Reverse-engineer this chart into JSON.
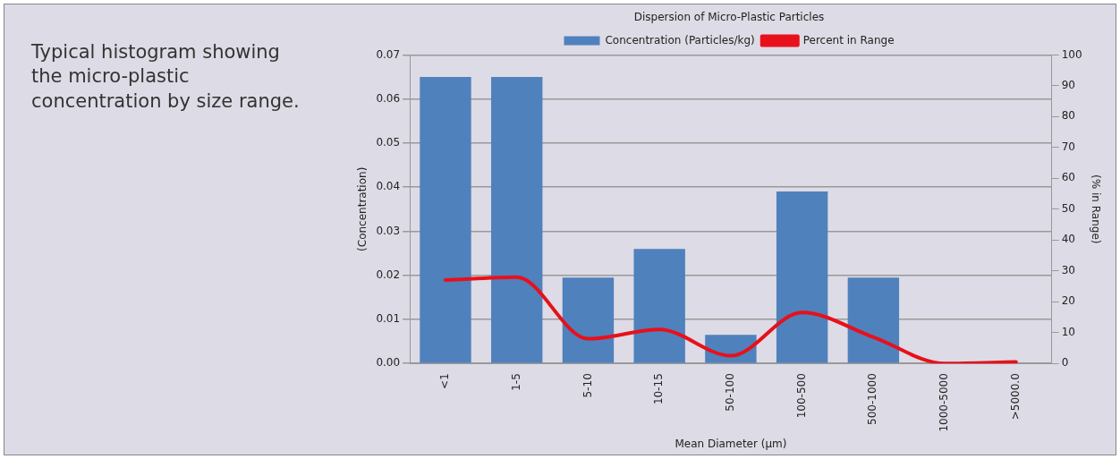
{
  "chart_data": {
    "type": "bar",
    "title": "Dispersion of Micro-Plastic Particles",
    "xlabel": "Mean Diameter (µm)",
    "ylabel": "(Concentration)",
    "y2label": "(% in Range)",
    "categories": [
      "<1",
      "1-5",
      "5-10",
      "10-15",
      "50-100",
      "100-500",
      "500-1000",
      "1000-5000",
      ">5000.0"
    ],
    "series": [
      {
        "name": "Concentration (Particles/kg)",
        "color": "#4f81bd",
        "values": [
          0.065,
          0.065,
          0.0195,
          0.026,
          0.0065,
          0.039,
          0.0195,
          0,
          0
        ]
      },
      {
        "name": "Percent in Range",
        "type": "line",
        "axis": "y2",
        "color": "#e8101a",
        "values": [
          27,
          28,
          8,
          11,
          2.5,
          16.5,
          8.5,
          0,
          0.5
        ]
      }
    ],
    "ylim": [
      0,
      0.07
    ],
    "yticks": [
      {
        "value": 0,
        "label": "0.00"
      },
      0.01,
      0.02,
      0.03,
      0.04,
      0.05,
      0.06,
      0.07
    ],
    "y2lim": [
      0,
      100
    ],
    "y2ticks": [
      0,
      10,
      20,
      30,
      40,
      50,
      60,
      70,
      80,
      90,
      100
    ],
    "grid": "y",
    "legend": "top",
    "marker": "none",
    "line_style": "solid",
    "annotations": [
      "Typical histogram showing the micro-plastic concentration by size range."
    ]
  }
}
